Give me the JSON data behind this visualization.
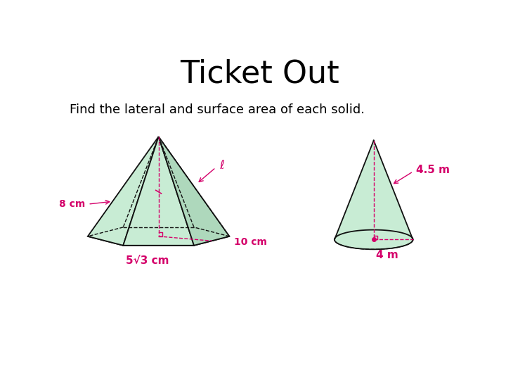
{
  "title": "Ticket Out",
  "subtitle": "Find the lateral and surface area of each solid.",
  "title_fontsize": 32,
  "subtitle_fontsize": 13,
  "bg_color": "#ffffff",
  "text_color": "#000000",
  "label_color": "#d4006a",
  "fill_color_light": "#c8ecd4",
  "fill_color_mid": "#aed8bc",
  "fill_color_dark": "#98c8a8",
  "edge_color": "#111111",
  "pyramid": {
    "label_8cm": "8 cm",
    "label_l": "ℓ",
    "label_10cm": "10 cm",
    "label_base": "5√3 cm"
  },
  "cone": {
    "label_slant": "4.5 m",
    "label_radius": "4 m"
  }
}
